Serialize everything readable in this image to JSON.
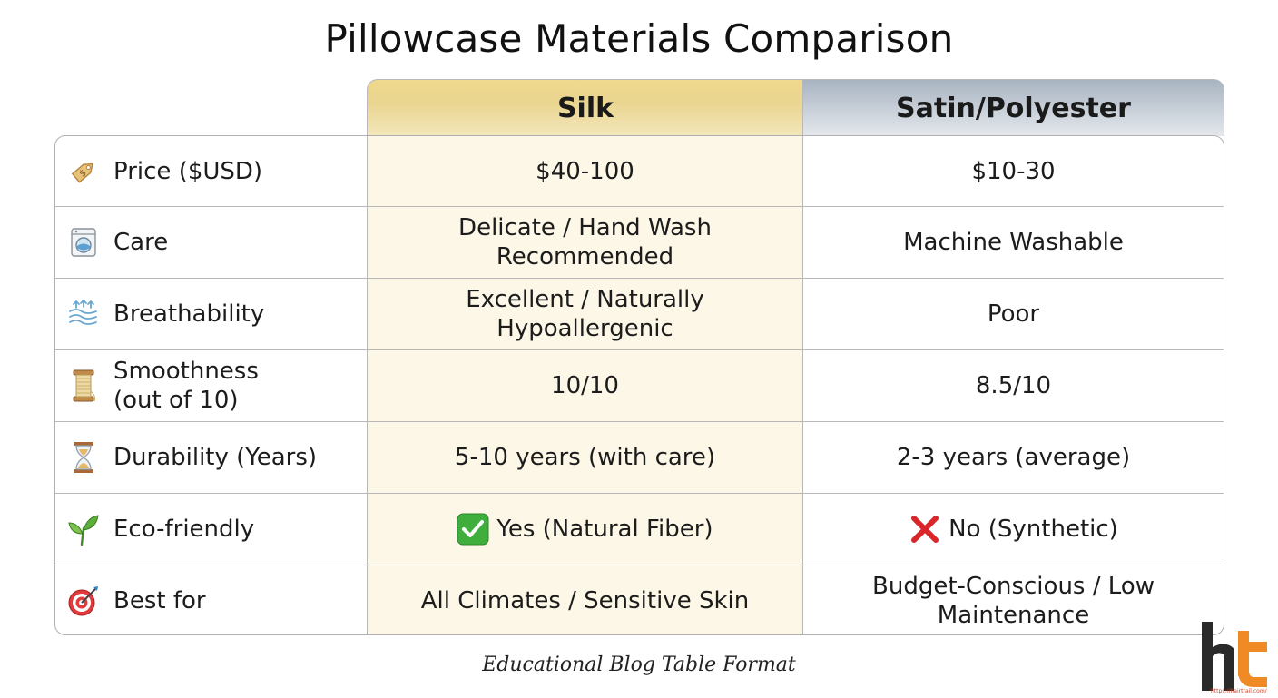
{
  "title": "Pillowcase Materials Comparison",
  "columns": {
    "silk": "Silk",
    "satin": "Satin/Polyester"
  },
  "rows": [
    {
      "icon": "price-tag-icon",
      "label": "Price ($USD)",
      "silk": "$40-100",
      "satin": "$10-30"
    },
    {
      "icon": "washing-machine-icon",
      "label": "Care",
      "silk": "Delicate / Hand Wash Recommended",
      "satin": "Machine Washable"
    },
    {
      "icon": "airflow-icon",
      "label": "Breathability",
      "silk": "Excellent / Naturally Hypoallergenic",
      "satin": "Poor"
    },
    {
      "icon": "thread-spool-icon",
      "label": "Smoothness (out of 10)",
      "silk": "10/10",
      "satin": "8.5/10"
    },
    {
      "icon": "hourglass-icon",
      "label": "Durability (Years)",
      "silk": "5-10 years (with care)",
      "satin": "2-3 years (average)"
    },
    {
      "icon": "seedling-icon",
      "label": "Eco-friendly",
      "silk": "Yes (Natural Fiber)",
      "satin": "No (Synthetic)",
      "silk_mark": "check-mark-icon",
      "satin_mark": "cross-mark-icon"
    },
    {
      "icon": "target-icon",
      "label": "Best for",
      "silk": "All Climates / Sensitive Skin",
      "satin": "Budget-Conscious / Low Maintenance"
    }
  ],
  "footer": "Educational Blog Table Format",
  "logo": {
    "letters": "ht",
    "url": "https://hairtrail.com/"
  },
  "colors": {
    "silk_header": "#ead58f",
    "satin_header": "#b6c0cb",
    "silk_column": "#fcf7e7",
    "check": "#3fae3c",
    "cross": "#d8262a",
    "logo_orange": "#f08a24"
  }
}
